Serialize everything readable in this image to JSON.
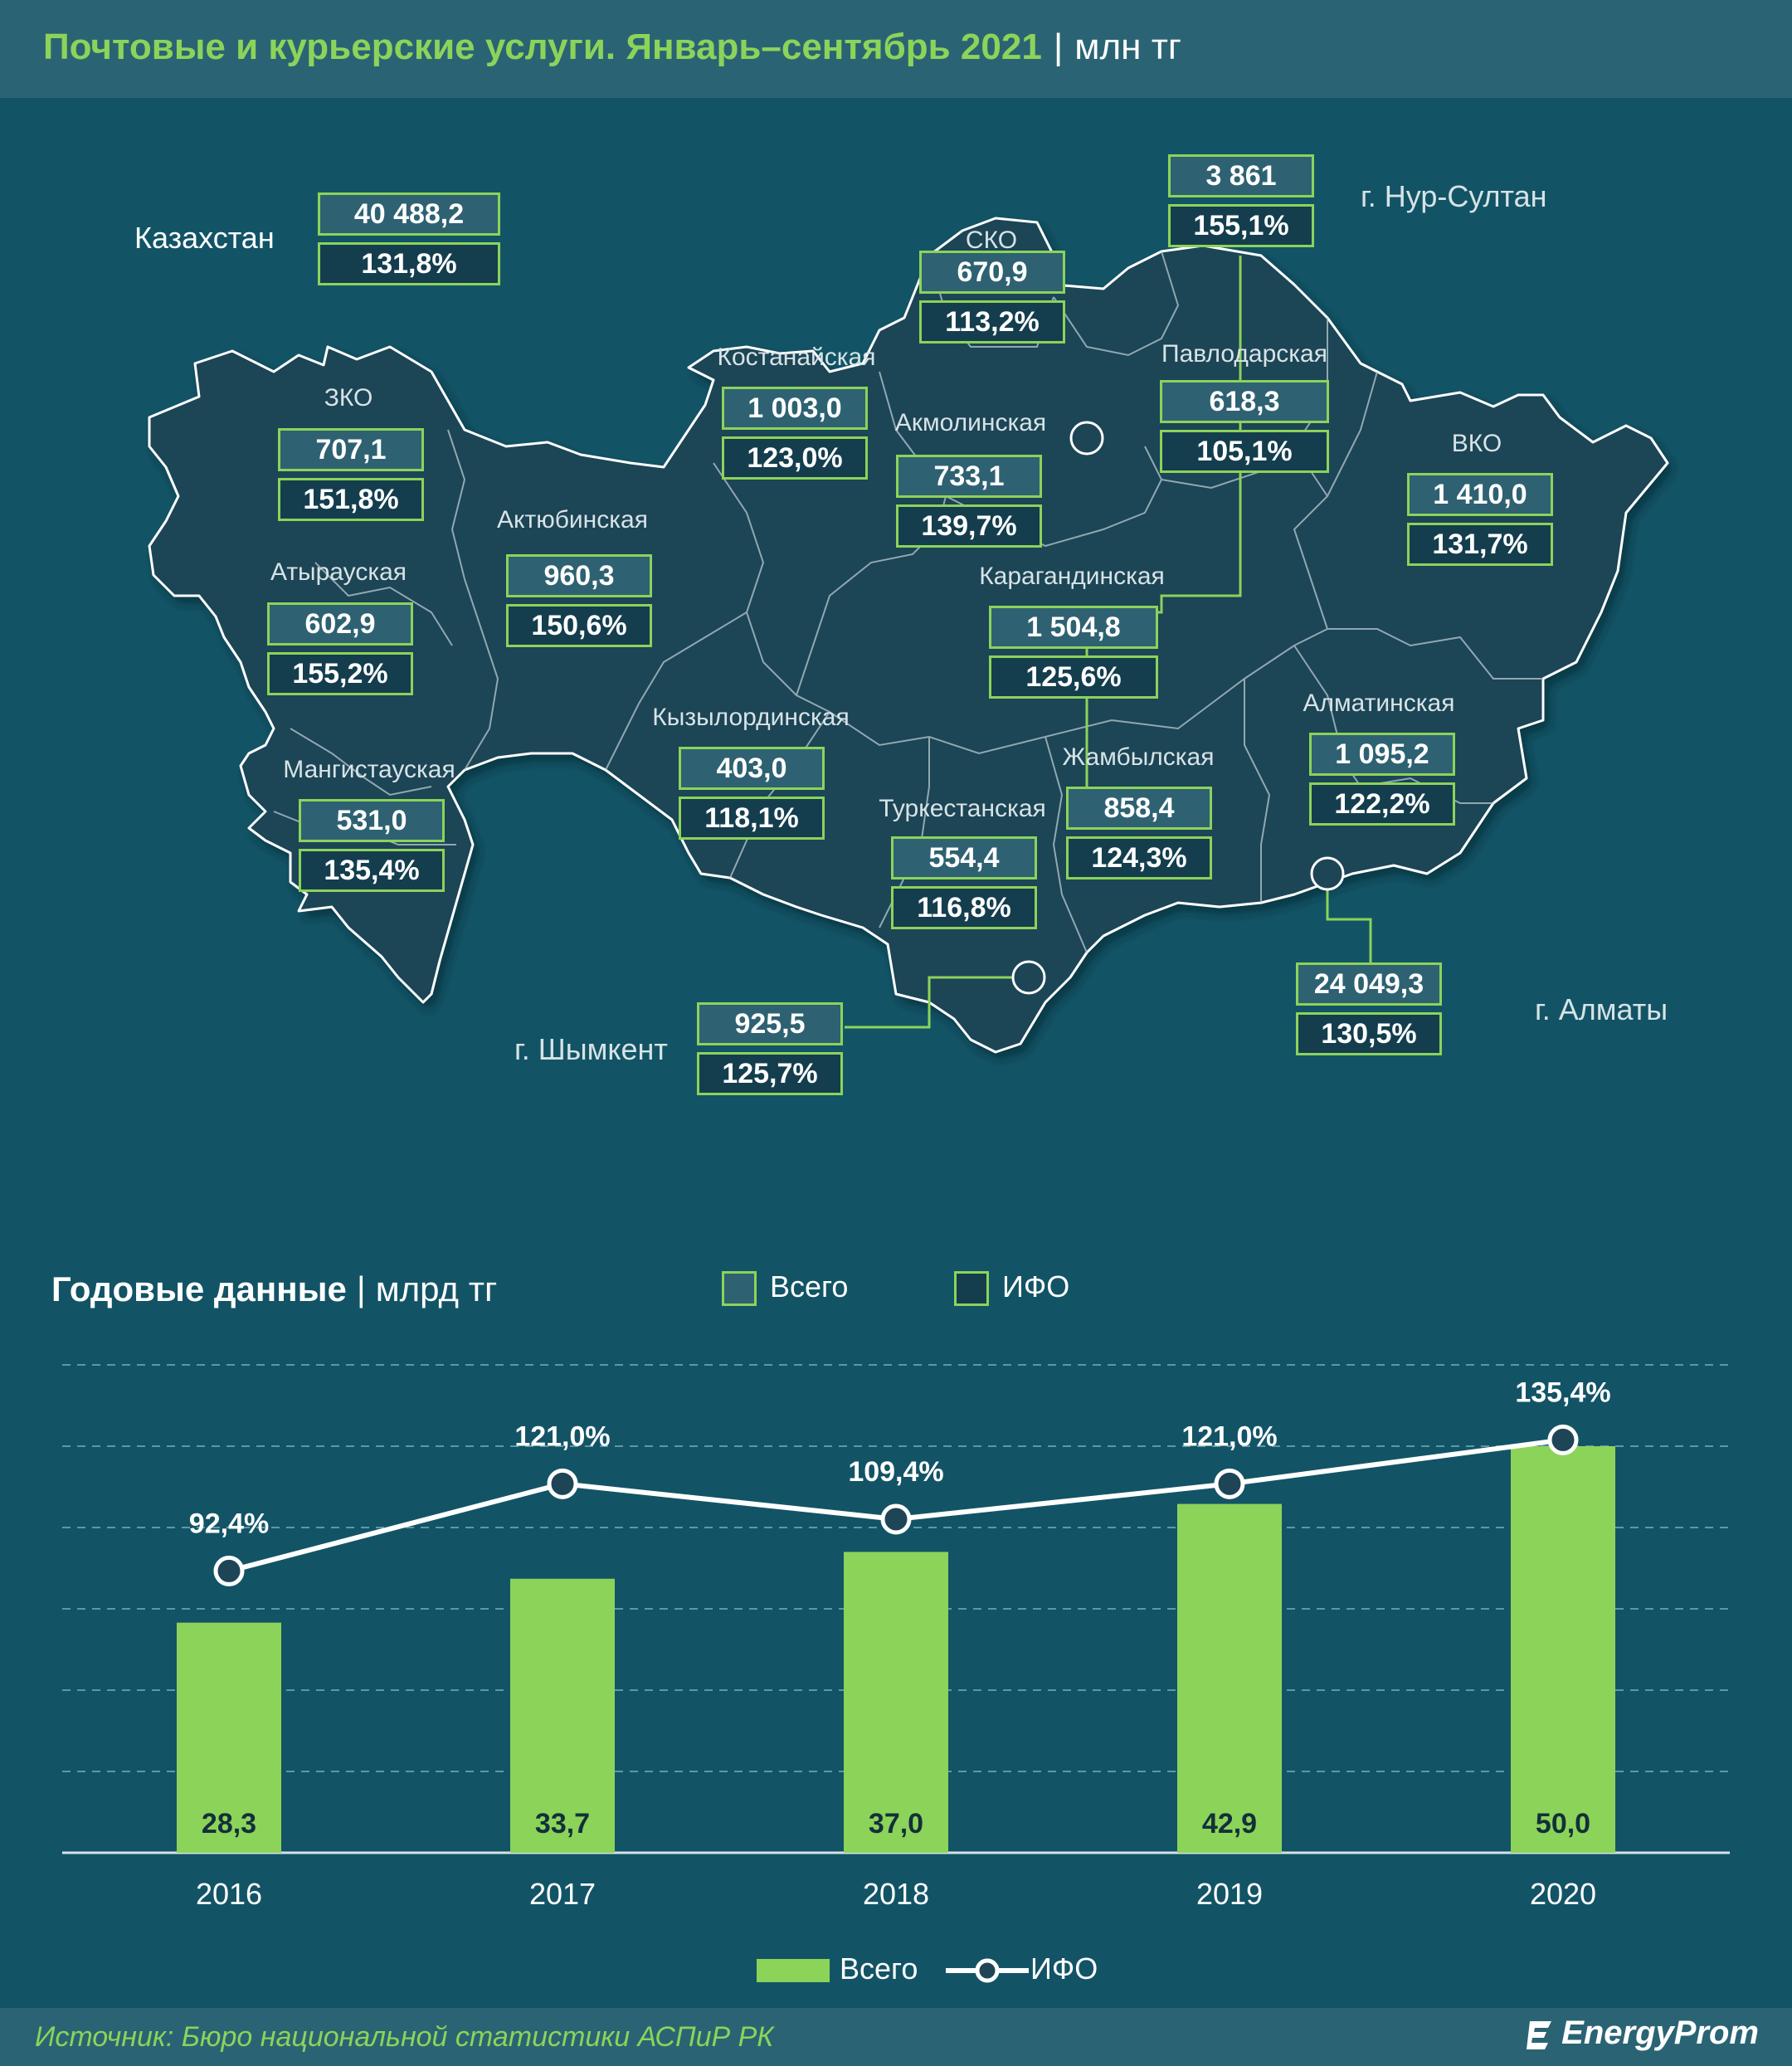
{
  "header": {
    "title": "Почтовые и курьерские услуги. Январь–сентябрь 2021",
    "separator": "|",
    "unit": "млн тг"
  },
  "map": {
    "kazakhstan": {
      "name": "Казахстан",
      "total": "40 488,2",
      "ifo": "131,8%"
    },
    "regions": [
      {
        "name": "СКО",
        "total": "670,9",
        "ifo": "113,2%"
      },
      {
        "name": "г. Нур-Султан",
        "total": "3 861",
        "ifo": "155,1%"
      },
      {
        "name": "Костанайская",
        "total": "1 003,0",
        "ifo": "123,0%"
      },
      {
        "name": "Павлодарская",
        "total": "618,3",
        "ifo": "105,1%"
      },
      {
        "name": "ЗКО",
        "total": "707,1",
        "ifo": "151,8%"
      },
      {
        "name": "Акмолинская",
        "total": "733,1",
        "ifo": "139,7%"
      },
      {
        "name": "ВКО",
        "total": "1 410,0",
        "ifo": "131,7%"
      },
      {
        "name": "Актюбинская",
        "total": "960,3",
        "ifo": "150,6%"
      },
      {
        "name": "Атырауская",
        "total": "602,9",
        "ifo": "155,2%"
      },
      {
        "name": "Карагандинская",
        "total": "1 504,8",
        "ifo": "125,6%"
      },
      {
        "name": "Алматинская",
        "total": "1 095,2",
        "ifo": "122,2%"
      },
      {
        "name": "Кызылординская",
        "total": "403,0",
        "ifo": "118,1%"
      },
      {
        "name": "Мангистауская",
        "total": "531,0",
        "ifo": "135,4%"
      },
      {
        "name": "Жамбылская",
        "total": "858,4",
        "ifo": "124,3%"
      },
      {
        "name": "Туркестанская",
        "total": "554,4",
        "ifo": "116,8%"
      },
      {
        "name": "г. Алматы",
        "total": "24 049,3",
        "ifo": "130,5%"
      },
      {
        "name": "г. Шымкент",
        "total": "925,5",
        "ifo": "125,7%"
      }
    ],
    "legend": {
      "total": "Всего",
      "ifo": "ИФО"
    },
    "colors": {
      "accent": "#8cd35a",
      "background": "#125466",
      "land": "#1d4556"
    }
  },
  "annual": {
    "title": "Годовые данные",
    "separator": "|",
    "unit": "млрд тг"
  },
  "chart_data": {
    "type": "bar",
    "categories": [
      "2016",
      "2017",
      "2018",
      "2019",
      "2020"
    ],
    "series": [
      {
        "name": "Всего",
        "type": "bar",
        "values": [
          28.3,
          33.7,
          37.0,
          42.9,
          50.0
        ],
        "labels": [
          "28,3",
          "33,7",
          "37,0",
          "42,9",
          "50,0"
        ],
        "color": "#8cd35a"
      },
      {
        "name": "ИФО",
        "type": "line",
        "values": [
          92.4,
          121.0,
          109.4,
          121.0,
          135.4
        ],
        "labels": [
          "92,4%",
          "121,0%",
          "109,4%",
          "121,0%",
          "135,4%"
        ],
        "color": "#ffffff"
      }
    ],
    "ylim": [
      0,
      60
    ],
    "ifo_ylim": [
      0,
      160
    ],
    "grid": true,
    "legend": "bottom"
  },
  "footer": {
    "source": "Источник: Бюро национальной статистики АСПиР РК",
    "logo": "EnergyProm"
  }
}
